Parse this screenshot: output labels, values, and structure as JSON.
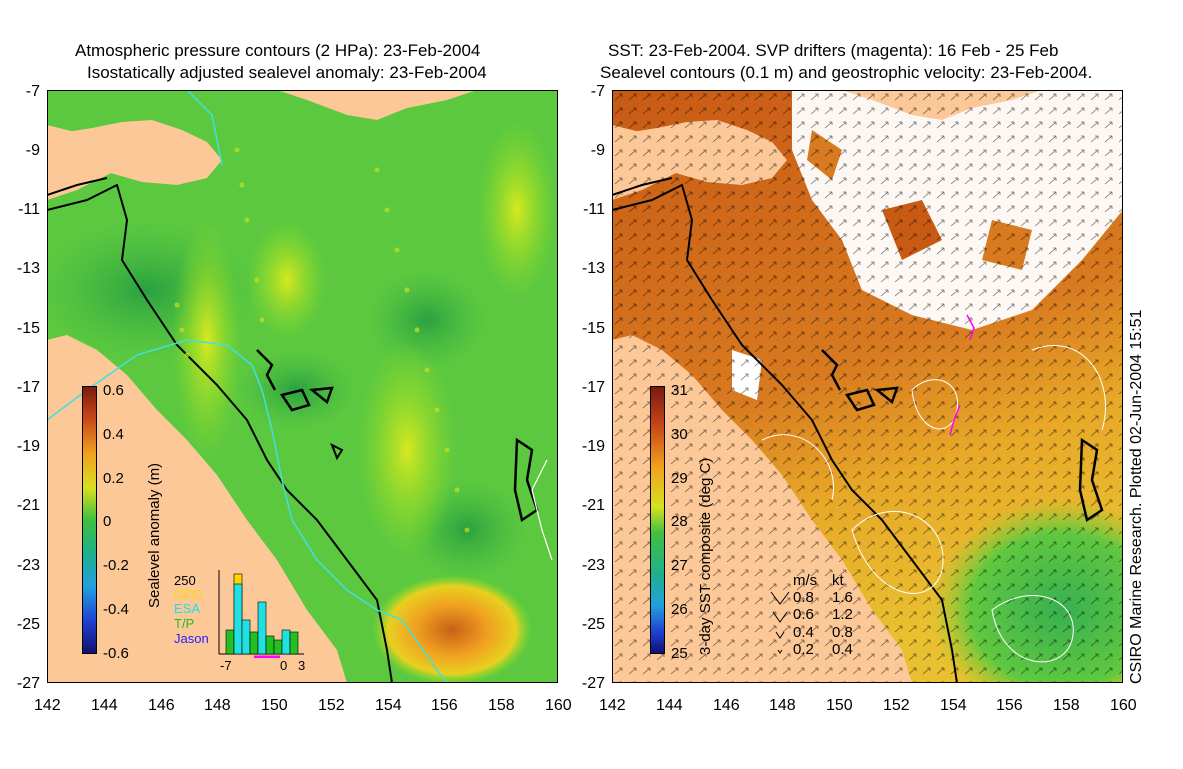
{
  "left_panel": {
    "title_line1": "Atmospheric pressure contours (2 HPa): 23-Feb-2004",
    "title_line2": "Isostatically adjusted sealevel anomaly: 23-Feb-2004",
    "colorbar_label": "Sealevel anomaly (m)",
    "colorbar_ticks": [
      "0.6",
      "0.4",
      "0.2",
      "0",
      "-0.2",
      "-0.4",
      "-0.6"
    ],
    "inset": {
      "ymax_label": "250",
      "legend": [
        {
          "label": "GFO",
          "color": "#ffd700"
        },
        {
          "label": "ESA",
          "color": "#22e0e0"
        },
        {
          "label": "T/P",
          "color": "#22c022"
        },
        {
          "label": "Jason",
          "color": "#2222ff"
        }
      ],
      "xticks": [
        "-7",
        "0",
        "3"
      ]
    }
  },
  "right_panel": {
    "title_line1": "SST: 23-Feb-2004. SVP drifters (magenta): 16 Feb - 25 Feb",
    "title_line2": "Sealevel contours (0.1 m) and geostrophic velocity: 23-Feb-2004.",
    "colorbar_label": "3-day SST composite (deg C)",
    "colorbar_ticks": [
      "31",
      "30",
      "29",
      "28",
      "27",
      "26",
      "25"
    ],
    "velocity_legend": {
      "header_ms": "m/s",
      "header_kt": "kt",
      "rows": [
        {
          "ms": "0.8",
          "kt": "1.6"
        },
        {
          "ms": "0.6",
          "kt": "1.2"
        },
        {
          "ms": "0.4",
          "kt": "0.8"
        },
        {
          "ms": "0.2",
          "kt": "0.4"
        }
      ]
    }
  },
  "y_ticks": [
    "-7",
    "-9",
    "-11",
    "-13",
    "-15",
    "-17",
    "-19",
    "-21",
    "-23",
    "-25",
    "-27"
  ],
  "x_ticks": [
    "142",
    "144",
    "146",
    "148",
    "150",
    "152",
    "154",
    "156",
    "158",
    "160"
  ],
  "credit": "CSIRO Marine Research. Plotted 02-Jun-2004 15:51",
  "colors": {
    "land": "#fcc898",
    "ocean_green": "#4cc040",
    "sst_orange": "#d86a1a"
  }
}
